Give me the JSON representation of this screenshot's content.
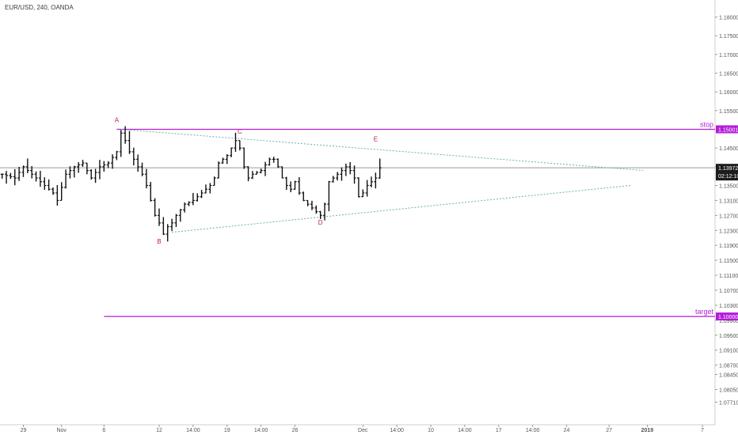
{
  "header": {
    "symbol": "EUR/USD, 240, OANDA"
  },
  "colors": {
    "candle": "#111111",
    "axis_text": "#555555",
    "level": "#b31dd6",
    "trend": "#69b3a9",
    "wave_label": "#c2185b",
    "price_tag": "#1c1c1c"
  },
  "chart_data": {
    "type": "ohlc",
    "title": "EUR/USD, 240, OANDA",
    "ylim": [
      1.0715,
      1.1835
    ],
    "y_ticks": [
      {
        "label": "1.18000",
        "value": 1.18
      },
      {
        "label": "1.17500",
        "value": 1.175
      },
      {
        "label": "1.17000",
        "value": 1.17
      },
      {
        "label": "1.16500",
        "value": 1.165
      },
      {
        "label": "1.16000",
        "value": 1.16
      },
      {
        "label": "1.15500",
        "value": 1.155
      },
      {
        "label": "1.14500",
        "value": 1.145
      },
      {
        "label": "1.14000",
        "value": 1.14
      },
      {
        "label": "1.13500",
        "value": 1.135
      },
      {
        "label": "1.13100",
        "value": 1.131
      },
      {
        "label": "1.12700",
        "value": 1.127
      },
      {
        "label": "1.12300",
        "value": 1.123
      },
      {
        "label": "1.11900",
        "value": 1.119
      },
      {
        "label": "1.11500",
        "value": 1.115
      },
      {
        "label": "1.11100",
        "value": 1.111
      },
      {
        "label": "1.10700",
        "value": 1.107
      },
      {
        "label": "1.10300",
        "value": 1.103
      },
      {
        "label": "1.09900",
        "value": 1.099
      },
      {
        "label": "1.09500",
        "value": 1.095
      },
      {
        "label": "1.09100",
        "value": 1.091
      },
      {
        "label": "1.08700",
        "value": 1.087
      },
      {
        "label": "1.08450",
        "value": 1.0845
      },
      {
        "label": "1.08050",
        "value": 1.0805
      },
      {
        "label": "1.07710",
        "value": 1.0771
      }
    ],
    "x_ticks": [
      {
        "label": "29",
        "bar": 5
      },
      {
        "label": "Nov",
        "bar": 14
      },
      {
        "label": "6",
        "bar": 24
      },
      {
        "label": "12",
        "bar": 37
      },
      {
        "label": "14:00",
        "bar": 45
      },
      {
        "label": "19",
        "bar": 53
      },
      {
        "label": "14:00",
        "bar": 61
      },
      {
        "label": "26",
        "bar": 69
      },
      {
        "label": "Dec",
        "bar": 85
      },
      {
        "label": "14:00",
        "bar": 93
      },
      {
        "label": "10",
        "bar": 101
      },
      {
        "label": "14:00",
        "bar": 109
      },
      {
        "label": "17",
        "bar": 117
      },
      {
        "label": "14:00",
        "bar": 125
      },
      {
        "label": "24",
        "bar": 133
      },
      {
        "label": "27",
        "bar": 143
      },
      {
        "label": "2019",
        "bar": 152
      },
      {
        "label": "7",
        "bar": 165
      }
    ],
    "bars_total": 173,
    "close_path": [
      [
        0,
        1.138
      ],
      [
        3,
        1.137
      ],
      [
        5,
        1.14
      ],
      [
        7,
        1.138
      ],
      [
        9,
        1.136
      ],
      [
        11,
        1.134
      ],
      [
        12,
        1.133
      ],
      [
        13,
        1.131
      ],
      [
        15,
        1.138
      ],
      [
        17,
        1.14
      ],
      [
        19,
        1.141
      ],
      [
        21,
        1.137
      ],
      [
        23,
        1.14
      ],
      [
        25,
        1.141
      ],
      [
        27,
        1.144
      ],
      [
        28,
        1.149
      ],
      [
        29,
        1.147
      ],
      [
        30,
        1.144
      ],
      [
        32,
        1.14
      ],
      [
        33,
        1.138
      ],
      [
        34,
        1.135
      ],
      [
        35,
        1.131
      ],
      [
        36,
        1.127
      ],
      [
        37,
        1.125
      ],
      [
        38,
        1.122
      ],
      [
        39,
        1.124
      ],
      [
        40,
        1.125
      ],
      [
        41,
        1.127
      ],
      [
        43,
        1.13
      ],
      [
        45,
        1.131
      ],
      [
        47,
        1.133
      ],
      [
        49,
        1.135
      ],
      [
        50,
        1.137
      ],
      [
        51,
        1.141
      ],
      [
        53,
        1.143
      ],
      [
        54,
        1.145
      ],
      [
        55,
        1.147
      ],
      [
        56,
        1.145
      ],
      [
        57,
        1.14
      ],
      [
        58,
        1.137
      ],
      [
        59,
        1.138
      ],
      [
        61,
        1.139
      ],
      [
        63,
        1.142
      ],
      [
        64,
        1.142
      ],
      [
        65,
        1.14
      ],
      [
        66,
        1.137
      ],
      [
        67,
        1.135
      ],
      [
        68,
        1.134
      ],
      [
        69,
        1.136
      ],
      [
        70,
        1.133
      ],
      [
        71,
        1.131
      ],
      [
        72,
        1.13
      ],
      [
        73,
        1.129
      ],
      [
        74,
        1.128
      ],
      [
        75,
        1.127
      ],
      [
        76,
        1.13
      ],
      [
        77,
        1.136
      ],
      [
        79,
        1.138
      ],
      [
        81,
        1.14
      ],
      [
        82,
        1.139
      ],
      [
        83,
        1.137
      ],
      [
        84,
        1.132
      ],
      [
        85,
        1.133
      ],
      [
        86,
        1.135
      ],
      [
        87,
        1.136
      ],
      [
        88,
        1.137
      ],
      [
        89,
        1.1397
      ]
    ],
    "levels": [
      {
        "name": "stop",
        "label": "stop",
        "price": 1.15001,
        "tag": "1.15001",
        "start_bar": 27
      },
      {
        "name": "target",
        "label": "target",
        "price": 1.1,
        "tag": "1.10000",
        "start_bar": 24
      }
    ],
    "current_price": {
      "tag": "1.13972",
      "countdown": "02:12:10",
      "price": 1.13972
    },
    "trendlines": [
      {
        "from": [
          28,
          1.15
        ],
        "to": [
          151,
          1.139
        ]
      },
      {
        "from": [
          40,
          1.1225
        ],
        "to": [
          148,
          1.135
        ]
      }
    ],
    "wave_labels": [
      {
        "label": "A",
        "bar": 27,
        "price": 1.1519
      },
      {
        "label": "B",
        "bar": 37,
        "price": 1.1195
      },
      {
        "label": "C",
        "bar": 56,
        "price": 1.1488
      },
      {
        "label": "D",
        "bar": 75,
        "price": 1.1245
      },
      {
        "label": "E",
        "bar": 88,
        "price": 1.1468
      }
    ]
  }
}
